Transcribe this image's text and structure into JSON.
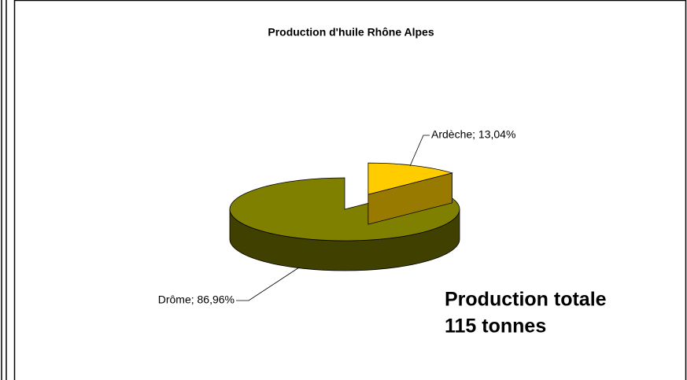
{
  "chart_data": {
    "type": "pie",
    "title": "Production d'huile Rhône Alpes",
    "categories": [
      "Ardèche",
      "Drôme"
    ],
    "values": [
      13.04,
      86.96
    ],
    "value_labels": [
      "Ardèche; 13,04%",
      "Drôme; 86,96%"
    ],
    "colors": [
      "#ffcc00",
      "#808000"
    ],
    "annotations": [
      "Production totale",
      "115 tonnes"
    ]
  }
}
